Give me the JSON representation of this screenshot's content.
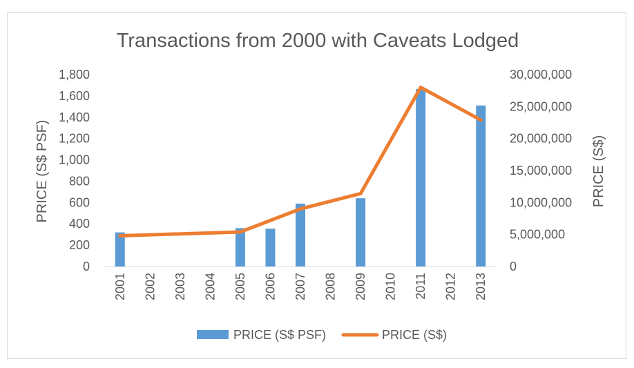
{
  "chart_data": {
    "type": "bar",
    "title": "Transactions from 2000 with Caveats Lodged",
    "categories": [
      "2001",
      "2002",
      "2003",
      "2004",
      "2005",
      "2006",
      "2007",
      "2008",
      "2009",
      "2010",
      "2011",
      "2012",
      "2013"
    ],
    "series": [
      {
        "name": "PRICE (S$ PSF)",
        "type": "bar",
        "axis": "left",
        "color": "#5b9bd5",
        "values": [
          320,
          null,
          null,
          null,
          360,
          355,
          590,
          null,
          640,
          null,
          1665,
          null,
          1510
        ]
      },
      {
        "name": "PRICE (S$)",
        "type": "line",
        "axis": "right",
        "color": "#ed7d31",
        "points": [
          {
            "x": "2001",
            "y": 4800000
          },
          {
            "x": "2005",
            "y": 5400000
          },
          {
            "x": "2007",
            "y": 9000000
          },
          {
            "x": "2009",
            "y": 11400000
          },
          {
            "x": "2011",
            "y": 28000000
          },
          {
            "x": "2013",
            "y": 22900000
          }
        ]
      }
    ],
    "ylabel_left": "PRICE (S$ PSF)",
    "ylabel_right": "PRICE (S$)",
    "ylim_left": [
      0,
      1800
    ],
    "ylim_right": [
      0,
      30000000
    ],
    "yticks_left": [
      "0",
      "200",
      "400",
      "600",
      "800",
      "1,000",
      "1,200",
      "1,400",
      "1,600",
      "1,800"
    ],
    "yticks_right": [
      "0",
      "5,000,000",
      "10,000,000",
      "15,000,000",
      "20,000,000",
      "25,000,000",
      "30,000,000"
    ],
    "grid": false,
    "legend_position": "bottom"
  }
}
